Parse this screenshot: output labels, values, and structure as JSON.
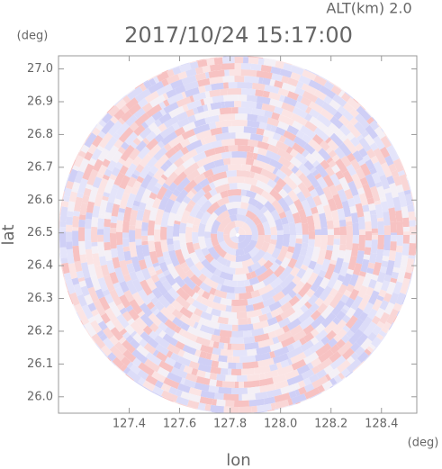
{
  "chart_data": {
    "type": "radar-scan",
    "title": "2017/10/24 15:17:00",
    "altitude_label": "ALT(km)  2.0",
    "x_label": "lon",
    "x_unit": "(deg)",
    "y_label": "lat",
    "y_unit": "(deg)",
    "xlim": [
      127.12,
      128.54
    ],
    "ylim": [
      25.95,
      27.04
    ],
    "xticks": [
      127.4,
      127.6,
      127.8,
      {
        "value": 128.0,
        "label": "128.0"
      },
      128.2,
      128.4
    ],
    "yticks": [
      {
        "value": 26.0,
        "label": "26.0"
      },
      26.1,
      26.2,
      26.3,
      26.4,
      26.5,
      26.6,
      26.7,
      26.8,
      26.9,
      {
        "value": 27.0,
        "label": "27.0"
      }
    ]
  }
}
